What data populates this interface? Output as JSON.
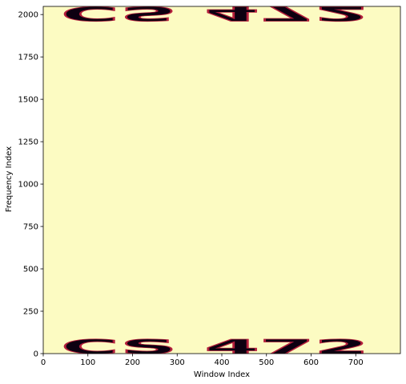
{
  "chart_data": {
    "type": "heatmap",
    "title": "",
    "xlabel": "Window Index",
    "ylabel": "Frequency Index",
    "xlim": [
      0,
      800
    ],
    "ylim": [
      0,
      2048
    ],
    "xticks": [
      0,
      100,
      200,
      300,
      400,
      500,
      600,
      700
    ],
    "yticks": [
      0,
      250,
      500,
      750,
      1000,
      1250,
      1500,
      1750,
      2000
    ],
    "colors": {
      "background": "#fcfbc2",
      "glyph_fill": "#0d0011",
      "glyph_edge": "#b31f3c"
    },
    "annotations": [
      {
        "text": "CS 472",
        "x_start": 40,
        "x_end": 730,
        "y_center": 40,
        "height": 100,
        "mirrored": false
      },
      {
        "text": "CS 472",
        "x_start": 40,
        "x_end": 730,
        "y_center": 2005,
        "height": 100,
        "mirrored": true
      }
    ]
  }
}
